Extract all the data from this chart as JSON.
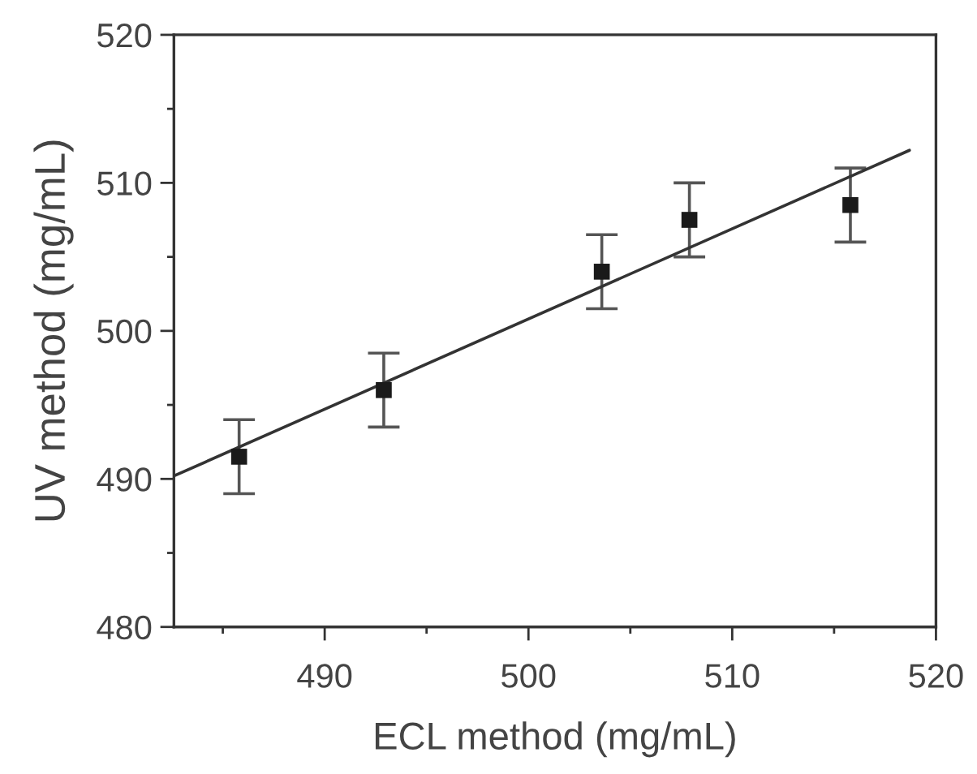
{
  "chart_data": {
    "type": "scatter",
    "xlabel": "ECL method (mg/mL)",
    "ylabel": "UV method (mg/mL)",
    "x": [
      485.8,
      492.9,
      503.6,
      507.9,
      515.8
    ],
    "series": [
      {
        "color": "#1a1a1a",
        "values": [
          491.5,
          496.0,
          504.0,
          507.5,
          508.5
        ],
        "errors": [
          2.5,
          2.5,
          2.5,
          2.5,
          2.5
        ],
        "marker": "square"
      },
      {
        "type": "line",
        "color": "#333333",
        "x": [
          482.6,
          518.7
        ],
        "values": [
          490.2,
          512.2
        ],
        "marker": "none",
        "line_style": "solid"
      }
    ],
    "xlim": [
      482.6,
      520
    ],
    "ylim": [
      480,
      520
    ],
    "xticks": [
      {
        "value": 485,
        "label": null
      },
      490,
      {
        "value": 495,
        "label": null
      },
      500,
      {
        "value": 505,
        "label": null
      },
      510,
      {
        "value": 515,
        "label": null
      },
      520
    ],
    "yticks": [
      480,
      {
        "value": 485,
        "label": null
      },
      490,
      {
        "value": 495,
        "label": null
      },
      500,
      {
        "value": 505,
        "label": null
      },
      510,
      {
        "value": 515,
        "label": null
      },
      520
    ],
    "grid": false,
    "legend": false
  }
}
